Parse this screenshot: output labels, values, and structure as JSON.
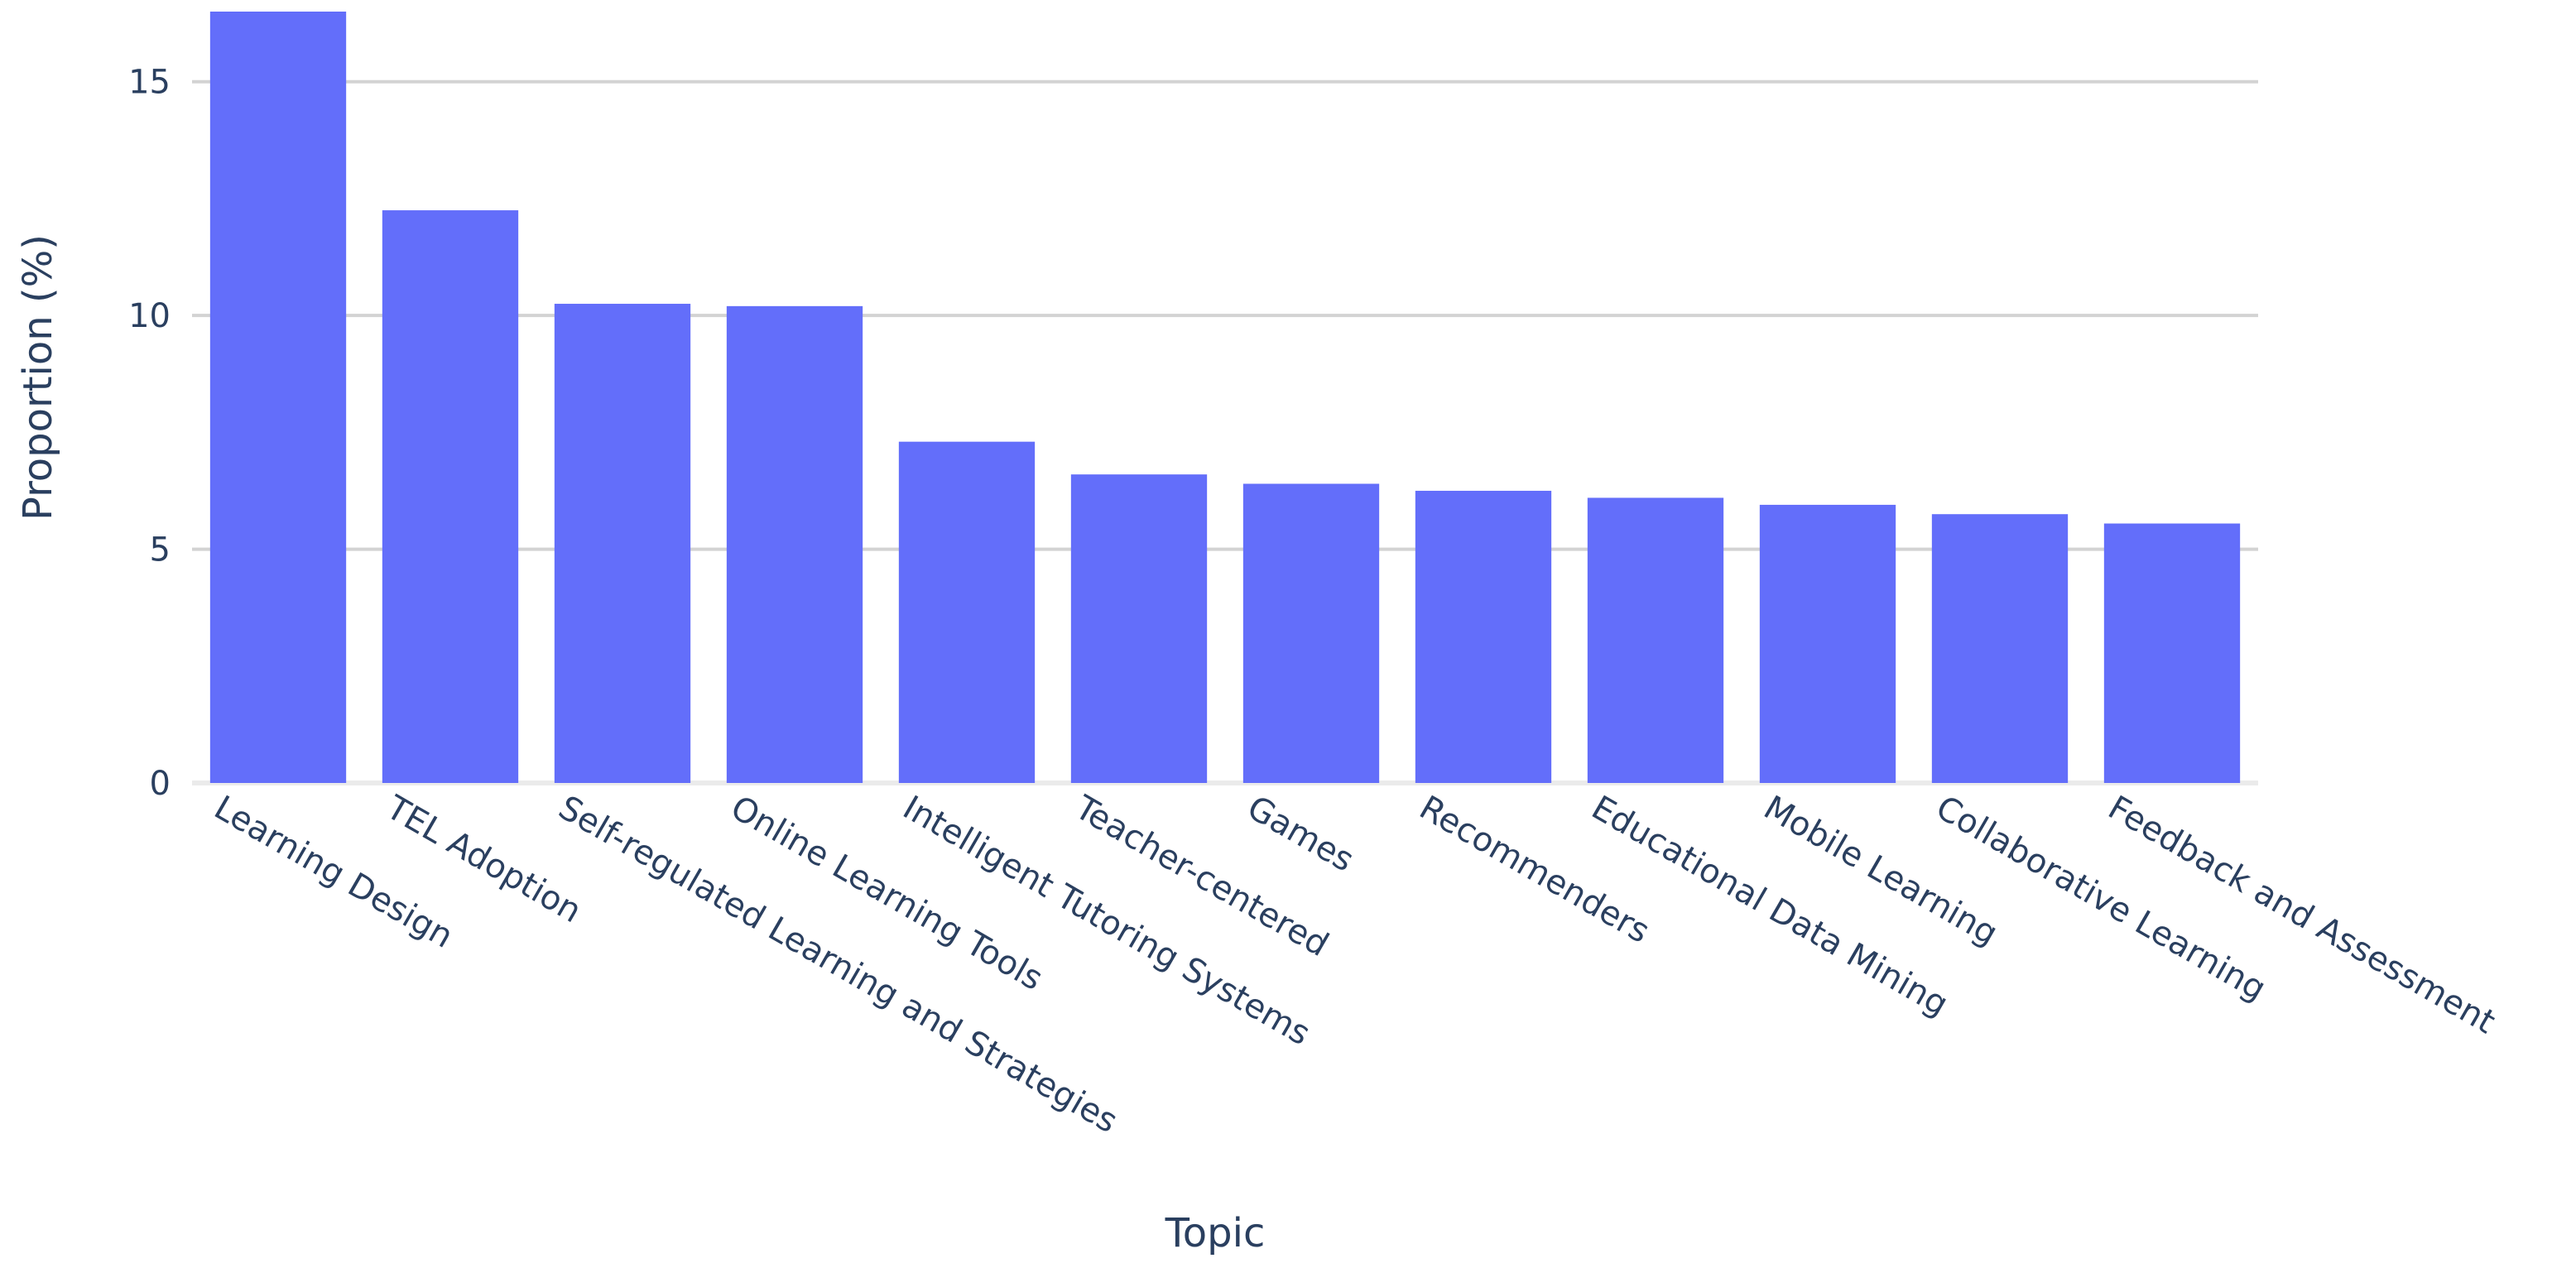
{
  "chart_data": {
    "type": "bar",
    "xlabel": "Topic",
    "ylabel": "Proportion (%)",
    "categories": [
      "Learning Design",
      "TEL Adoption",
      "Self-regulated Learning and Strategies",
      "Online Learning Tools",
      "Intelligent Tutoring Systems",
      "Teacher-centered",
      "Games",
      "Recommenders",
      "Educational Data Mining",
      "Mobile Learning",
      "Collaborative Learning",
      "Feedback and Assessment"
    ],
    "values": [
      16.5,
      12.25,
      10.25,
      10.2,
      7.3,
      6.6,
      6.4,
      6.25,
      6.1,
      5.95,
      5.75,
      5.55
    ],
    "yticks": [
      0,
      5,
      10,
      15
    ],
    "ylim": [
      0,
      16.5
    ],
    "grid": true,
    "bar_color": "#636efa"
  }
}
